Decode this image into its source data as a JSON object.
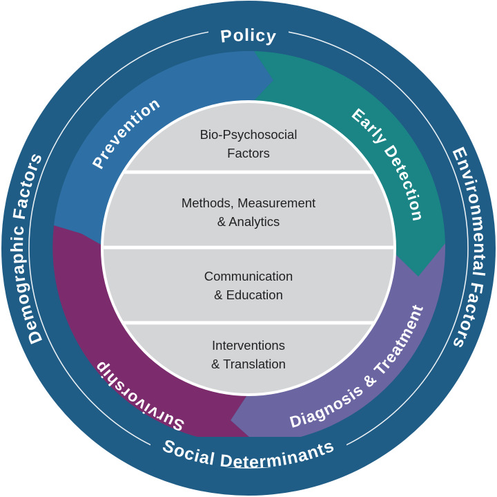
{
  "colors": {
    "outer_ring": "#1f5d86",
    "core": "#d4d5d7",
    "core_divider": "#ffffff",
    "prevention": "#2e70a5",
    "early_detection": "#1b8585",
    "diagnosis_treatment": "#6b66a2",
    "survivorship": "#7c2c6c",
    "text_light": "#ffffff",
    "text_dark": "#222222"
  },
  "outer_factors": {
    "top": "Policy",
    "left": "Demographic Factors",
    "right": "Environmental Factors",
    "bottom": "Social Determinants"
  },
  "stages": {
    "prevention": "Prevention",
    "early_detection": "Early Detection",
    "diagnosis_treatment": "Diagnosis & Treatment",
    "survivorship": "Survivorship"
  },
  "core_sections": [
    {
      "line1": "Bio-Psychosocial",
      "line2": "Factors"
    },
    {
      "line1": "Methods, Measurement",
      "line2": "& Analytics"
    },
    {
      "line1": "Communication",
      "line2": "& Education"
    },
    {
      "line1": "Interventions",
      "line2": "& Translation"
    }
  ]
}
